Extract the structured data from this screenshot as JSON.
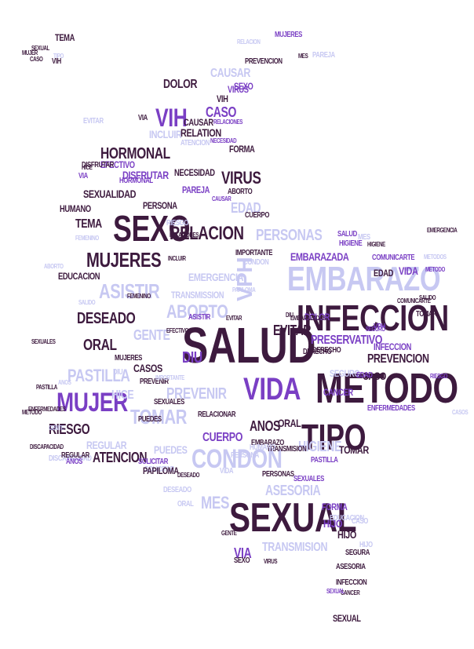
{
  "colors": {
    "dark": "#3d1a3e",
    "purple": "#7a3fc4",
    "light": "#c7c8f2",
    "background": "#ffffff"
  },
  "words": [
    {
      "text": "SALUD",
      "c": "dark"
    },
    {
      "text": "METODO",
      "c": "dark"
    },
    {
      "text": "SEXUAL",
      "c": "dark"
    },
    {
      "text": "TIPO",
      "c": "dark"
    },
    {
      "text": "INFECCION",
      "c": "dark"
    },
    {
      "text": "SEXO",
      "c": "dark"
    },
    {
      "text": "EMBARAZO",
      "c": "light"
    },
    {
      "text": "VIDA",
      "c": "purple"
    },
    {
      "text": "CONDON",
      "c": "light"
    },
    {
      "text": "MUJER",
      "c": "purple"
    },
    {
      "text": "MUJERES",
      "c": "dark"
    },
    {
      "text": "RELACION",
      "c": "dark"
    },
    {
      "text": "VIH",
      "c": "purple"
    },
    {
      "text": "ASISTIR",
      "c": "light"
    },
    {
      "text": "ABORTO",
      "c": "light"
    },
    {
      "text": "PASTILLA",
      "c": "light"
    },
    {
      "text": "TOMAR",
      "c": "light"
    },
    {
      "text": "PERSONAS",
      "c": "light"
    },
    {
      "text": "VPH",
      "c": "light"
    },
    {
      "text": "PRESERVATIVO",
      "c": "purple"
    },
    {
      "text": "PREVENCION",
      "c": "dark"
    },
    {
      "text": "EVITAR",
      "c": "dark"
    },
    {
      "text": "DESEADO",
      "c": "dark"
    },
    {
      "text": "ORAL",
      "c": "dark"
    },
    {
      "text": "DIU",
      "c": "purple"
    },
    {
      "text": "GENTE",
      "c": "light"
    },
    {
      "text": "HORMONAL",
      "c": "dark"
    },
    {
      "text": "VIRUS",
      "c": "dark"
    },
    {
      "text": "CASO",
      "c": "purple"
    },
    {
      "text": "DOLOR",
      "c": "dark"
    },
    {
      "text": "CAUSAR",
      "c": "light"
    },
    {
      "text": "RIESGO",
      "c": "dark"
    },
    {
      "text": "ATENCION",
      "c": "dark"
    },
    {
      "text": "HIGIENE",
      "c": "light"
    },
    {
      "text": "ASESORIA",
      "c": "light"
    },
    {
      "text": "TRANSMISION",
      "c": "light"
    },
    {
      "text": "MES",
      "c": "light"
    },
    {
      "text": "HIJO",
      "c": "purple"
    },
    {
      "text": "VIA",
      "c": "purple"
    },
    {
      "text": "PREVENIR",
      "c": "light"
    },
    {
      "text": "CUERPO",
      "c": "purple"
    },
    {
      "text": "ANOS",
      "c": "dark"
    },
    {
      "text": "EDAD",
      "c": "light"
    },
    {
      "text": "EMBARAZADA",
      "c": "purple"
    },
    {
      "text": "IMPORTANTE",
      "c": "dark"
    },
    {
      "text": "TEMA",
      "c": "dark"
    },
    {
      "text": "HUMANO",
      "c": "dark"
    },
    {
      "text": "SEXUALIDAD",
      "c": "dark"
    },
    {
      "text": "NECESIDAD",
      "c": "dark"
    },
    {
      "text": "EMERGENCIA",
      "c": "light"
    },
    {
      "text": "HICE",
      "c": "light"
    },
    {
      "text": "PUEDES",
      "c": "light"
    },
    {
      "text": "CASOS",
      "c": "dark"
    },
    {
      "text": "PAREJA",
      "c": "purple"
    },
    {
      "text": "DERECHO",
      "c": "dark"
    },
    {
      "text": "REGULAR",
      "c": "light"
    },
    {
      "text": "PERSONA",
      "c": "dark"
    },
    {
      "text": "INCLUIR",
      "c": "light"
    },
    {
      "text": "EFECTIVO",
      "c": "purple"
    },
    {
      "text": "DISFRUTAR",
      "c": "purple"
    },
    {
      "text": "FORMA",
      "c": "dark"
    },
    {
      "text": "SOLICITAR",
      "c": "light"
    },
    {
      "text": "PAPILOMA",
      "c": "dark"
    },
    {
      "text": "SEGURO",
      "c": "light"
    },
    {
      "text": "ENFERMEDADES",
      "c": "purple"
    },
    {
      "text": "COMUNICARTE",
      "c": "purple"
    },
    {
      "text": "EDUCACION",
      "c": "dark"
    },
    {
      "text": "RELACIONES",
      "c": "purple"
    },
    {
      "text": "CANCER",
      "c": "purple"
    },
    {
      "text": "SEXUALES",
      "c": "dark"
    },
    {
      "text": "DISCAPACIDAD",
      "c": "light"
    },
    {
      "text": "FEMENINO",
      "c": "light"
    },
    {
      "text": "RELACIONAR",
      "c": "dark"
    },
    {
      "text": "TRANSMISSION",
      "c": "light"
    },
    {
      "text": "SALIDO",
      "c": "light"
    },
    {
      "text": "METODOS",
      "c": "light"
    },
    {
      "text": "VIRUS",
      "c": "purple"
    },
    {
      "text": "MUJERES",
      "c": "purple"
    },
    {
      "text": "SEXO",
      "c": "purple"
    },
    {
      "text": "VIH",
      "c": "dark"
    },
    {
      "text": "DIU",
      "c": "light"
    },
    {
      "text": "ABORTO",
      "c": "dark"
    },
    {
      "text": "ATENCION",
      "c": "light"
    },
    {
      "text": "TIPO",
      "c": "light"
    },
    {
      "text": "VIA",
      "c": "purple"
    },
    {
      "text": "VIDA",
      "c": "purple"
    },
    {
      "text": "INFECCION",
      "c": "purple"
    },
    {
      "text": "MES",
      "c": "light"
    },
    {
      "text": "ORAL",
      "c": "dark"
    },
    {
      "text": "CASO",
      "c": "dark"
    },
    {
      "text": "HIJO",
      "c": "dark"
    },
    {
      "text": "HIGIENE",
      "c": "purple"
    },
    {
      "text": "GENTE",
      "c": "light"
    },
    {
      "text": "EVITAR",
      "c": "light"
    },
    {
      "text": "PASTILLA",
      "c": "dark"
    },
    {
      "text": "TEMA",
      "c": "dark"
    },
    {
      "text": "MUJER",
      "c": "dark"
    },
    {
      "text": "RIESGO",
      "c": "light"
    },
    {
      "text": "PREVENIR",
      "c": "dark"
    },
    {
      "text": "CAUSAR",
      "c": "dark"
    },
    {
      "text": "ASISTIR",
      "c": "purple"
    },
    {
      "text": "TOMAR",
      "c": "dark"
    },
    {
      "text": "ANOS",
      "c": "purple"
    },
    {
      "text": "CUERPO",
      "c": "dark"
    },
    {
      "text": "FORMA",
      "c": "purple"
    },
    {
      "text": "CANCER",
      "c": "dark"
    },
    {
      "text": "SEXUAL",
      "c": "dark"
    },
    {
      "text": "SEXUAL",
      "c": "dark"
    },
    {
      "text": "CASO",
      "c": "dark"
    },
    {
      "text": "SEXUALES",
      "c": "purple"
    },
    {
      "text": "DESEADO",
      "c": "dark"
    },
    {
      "text": "VIDA",
      "c": "light"
    },
    {
      "text": "RELATION",
      "c": "dark"
    },
    {
      "text": "PREVENCION",
      "c": "dark"
    },
    {
      "text": "CONDON",
      "c": "light"
    },
    {
      "text": "DERECHO",
      "c": "dark"
    },
    {
      "text": "EDAD",
      "c": "dark"
    },
    {
      "text": "METODO",
      "c": "purple"
    },
    {
      "text": "SALUD",
      "c": "purple"
    },
    {
      "text": "EMBARAZO",
      "c": "dark"
    },
    {
      "text": "DOLOR",
      "c": "purple"
    },
    {
      "text": "PERSONAS",
      "c": "dark"
    },
    {
      "text": "VPH",
      "c": "purple"
    },
    {
      "text": "TRANSMISION",
      "c": "dark"
    },
    {
      "text": "DISFRUTAR",
      "c": "dark"
    },
    {
      "text": "SOLICITAR",
      "c": "purple"
    },
    {
      "text": "ASESORIA",
      "c": "dark"
    },
    {
      "text": "PUEDES",
      "c": "dark"
    },
    {
      "text": "REGULAR",
      "c": "dark"
    },
    {
      "text": "HUMANO",
      "c": "light"
    },
    {
      "text": "ENFERMEDADES",
      "c": "dark"
    },
    {
      "text": "EMBARAZADAS",
      "c": "dark"
    },
    {
      "text": "EDUCACION",
      "c": "light"
    },
    {
      "text": "INCLUIR",
      "c": "dark"
    },
    {
      "text": "HICE",
      "c": "dark"
    },
    {
      "text": "SEGURA",
      "c": "dark"
    },
    {
      "text": "FEMENINO",
      "c": "dark"
    },
    {
      "text": "SALIDO",
      "c": "dark"
    },
    {
      "text": "EFECTIVO",
      "c": "dark"
    },
    {
      "text": "TOMAR",
      "c": "dark"
    },
    {
      "text": "VIH",
      "c": "dark"
    },
    {
      "text": "HORMONAL",
      "c": "purple"
    },
    {
      "text": "HIGIENE",
      "c": "dark"
    },
    {
      "text": "SEXO",
      "c": "dark"
    },
    {
      "text": "VIRUS",
      "c": "dark"
    },
    {
      "text": "DESEADO",
      "c": "light"
    },
    {
      "text": "CAUSAR",
      "c": "purple"
    },
    {
      "text": "SEXUAL",
      "c": "purple"
    },
    {
      "text": "RELACIONES",
      "c": "dark"
    },
    {
      "text": "NECESIDAD",
      "c": "purple"
    },
    {
      "text": "DISCAPACIDAD",
      "c": "dark"
    },
    {
      "text": "ANOS",
      "c": "light"
    },
    {
      "text": "SEGURO",
      "c": "purple"
    },
    {
      "text": "PERSONA",
      "c": "light"
    },
    {
      "text": "ABORTO",
      "c": "light"
    },
    {
      "text": "EMERGENCIA",
      "c": "dark"
    },
    {
      "text": "CASO",
      "c": "light"
    },
    {
      "text": "INFECCION",
      "c": "dark"
    },
    {
      "text": "VIA",
      "c": "dark"
    },
    {
      "text": "EVITAR",
      "c": "dark"
    },
    {
      "text": "IMPORTANTE",
      "c": "light"
    },
    {
      "text": "DIU",
      "c": "dark"
    },
    {
      "text": "PAPILOMA",
      "c": "light"
    },
    {
      "text": "CASOS",
      "c": "light"
    },
    {
      "text": "PASTILLA",
      "c": "purple"
    },
    {
      "text": "MUJERES",
      "c": "dark"
    },
    {
      "text": "SEXUALES",
      "c": "dark"
    },
    {
      "text": "RIESGO",
      "c": "purple"
    },
    {
      "text": "COMUNICARTE",
      "c": "dark"
    },
    {
      "text": "METODO",
      "c": "dark"
    },
    {
      "text": "RELACION",
      "c": "light"
    },
    {
      "text": "EDAD",
      "c": "purple"
    },
    {
      "text": "MES",
      "c": "dark"
    },
    {
      "text": "ORAL",
      "c": "light"
    },
    {
      "text": "HIJO",
      "c": "light"
    },
    {
      "text": "PAREJA",
      "c": "light"
    },
    {
      "text": "GENTE",
      "c": "dark"
    }
  ]
}
